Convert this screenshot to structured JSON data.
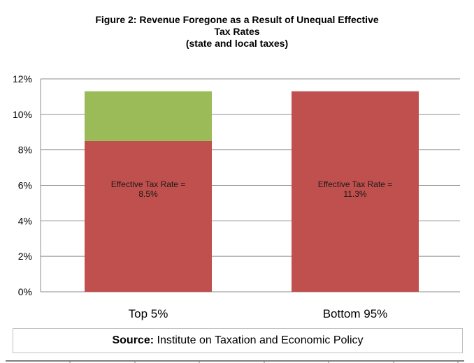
{
  "chart_data": {
    "type": "bar",
    "stacked": true,
    "title_lines": [
      "Figure 2: Revenue Foregone as a Result of Unequal Effective",
      "Tax Rates",
      "(state and local taxes)"
    ],
    "categories": [
      "Top 5%",
      "Bottom 95%"
    ],
    "series": [
      {
        "values": [
          8.5,
          11.3
        ],
        "color": "#c0504d"
      },
      {
        "values": [
          2.8,
          0
        ],
        "color": "#9bbb59"
      }
    ],
    "data_labels": [
      [
        "Effective Tax Rate =",
        "8.5%"
      ],
      [
        "Effective Tax Rate =",
        "11.3%"
      ]
    ],
    "y_ticks": [
      "0%",
      "2%",
      "4%",
      "6%",
      "8%",
      "10%",
      "12%"
    ],
    "ylim": [
      0,
      12
    ],
    "grid": true,
    "legend": "none"
  },
  "source": {
    "label": "Source:",
    "text": " Institute on Taxation and Economic Policy"
  }
}
